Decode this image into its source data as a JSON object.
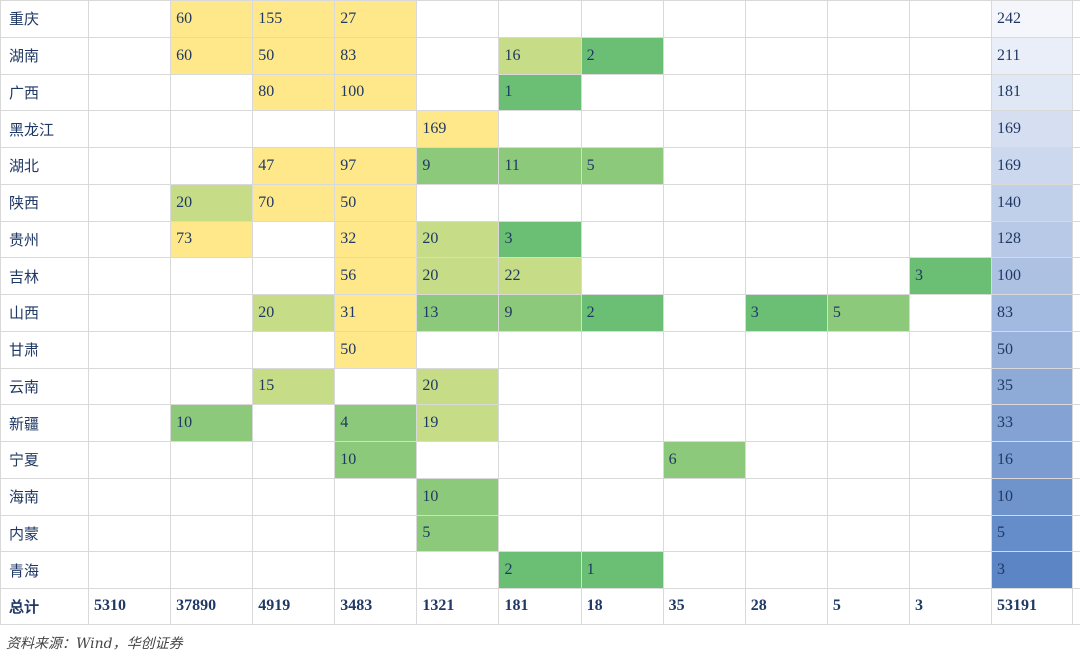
{
  "table": {
    "rows": [
      {
        "province": "重庆",
        "values": [
          "",
          "60",
          "155",
          "27",
          "",
          "",
          "",
          "",
          "",
          "",
          "",
          "242"
        ]
      },
      {
        "province": "湖南",
        "values": [
          "",
          "60",
          "50",
          "83",
          "",
          "16",
          "2",
          "",
          "",
          "",
          "",
          "211"
        ]
      },
      {
        "province": "广西",
        "values": [
          "",
          "",
          "80",
          "100",
          "",
          "1",
          "",
          "",
          "",
          "",
          "",
          "181"
        ]
      },
      {
        "province": "黑龙江",
        "values": [
          "",
          "",
          "",
          "",
          "169",
          "",
          "",
          "",
          "",
          "",
          "",
          "169"
        ]
      },
      {
        "province": "湖北",
        "values": [
          "",
          "",
          "47",
          "97",
          "9",
          "11",
          "5",
          "",
          "",
          "",
          "",
          "169"
        ]
      },
      {
        "province": "陕西",
        "values": [
          "",
          "20",
          "70",
          "50",
          "",
          "",
          "",
          "",
          "",
          "",
          "",
          "140"
        ]
      },
      {
        "province": "贵州",
        "values": [
          "",
          "73",
          "",
          "32",
          "20",
          "3",
          "",
          "",
          "",
          "",
          "",
          "128"
        ]
      },
      {
        "province": "吉林",
        "values": [
          "",
          "",
          "",
          "56",
          "20",
          "22",
          "",
          "",
          "",
          "",
          "3",
          "100"
        ]
      },
      {
        "province": "山西",
        "values": [
          "",
          "",
          "20",
          "31",
          "13",
          "9",
          "2",
          "",
          "3",
          "5",
          "",
          "83"
        ]
      },
      {
        "province": "甘肃",
        "values": [
          "",
          "",
          "",
          "50",
          "",
          "",
          "",
          "",
          "",
          "",
          "",
          "50"
        ]
      },
      {
        "province": "云南",
        "values": [
          "",
          "",
          "15",
          "",
          "20",
          "",
          "",
          "",
          "",
          "",
          "",
          "35"
        ]
      },
      {
        "province": "新疆",
        "values": [
          "",
          "10",
          "",
          "4",
          "19",
          "",
          "",
          "",
          "",
          "",
          "",
          "33"
        ]
      },
      {
        "province": "宁夏",
        "values": [
          "",
          "",
          "",
          "10",
          "",
          "",
          "",
          "6",
          "",
          "",
          "",
          "16"
        ]
      },
      {
        "province": "海南",
        "values": [
          "",
          "",
          "",
          "",
          "10",
          "",
          "",
          "",
          "",
          "",
          "",
          "10"
        ]
      },
      {
        "province": "内蒙",
        "values": [
          "",
          "",
          "",
          "",
          "5",
          "",
          "",
          "",
          "",
          "",
          "",
          "5"
        ]
      },
      {
        "province": "青海",
        "values": [
          "",
          "",
          "",
          "",
          "",
          "2",
          "1",
          "",
          "",
          "",
          "",
          "3"
        ]
      }
    ],
    "total": {
      "label": "总计",
      "values": [
        "5310",
        "37890",
        "4919",
        "3483",
        "1321",
        "181",
        "18",
        "35",
        "28",
        "5",
        "3",
        "53191"
      ]
    }
  },
  "source": "资料来源：Wind，华创证券",
  "colors": {
    "yellow": "#ffe889",
    "yellow_green": "#c6dc86",
    "light_green": "#a7d382",
    "mid_green": "#8cc97a",
    "green": "#6abf74",
    "total_light": "#f4f6fc",
    "total_dark": "#5b85c5"
  }
}
